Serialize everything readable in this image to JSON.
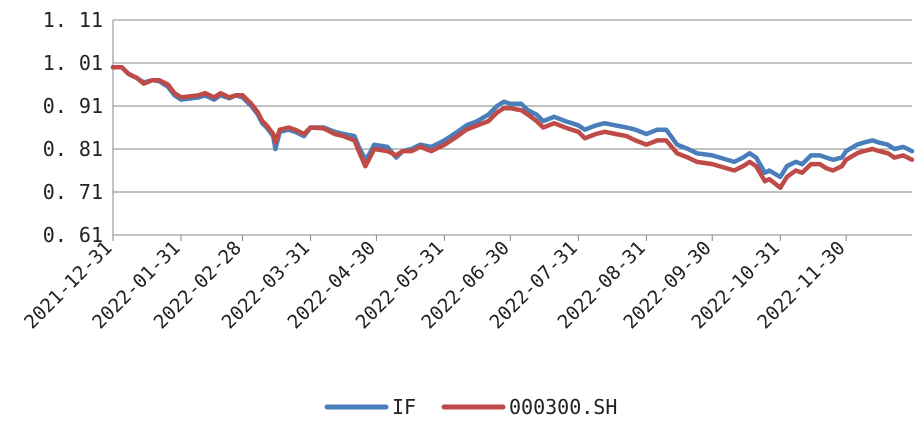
{
  "chart_data": {
    "type": "line",
    "title": "",
    "xlabel": "",
    "ylabel": "",
    "ylim": [
      0.61,
      1.11
    ],
    "yticks": [
      "0. 61",
      "0. 71",
      "0. 81",
      "0. 91",
      "1. 01",
      "1. 11"
    ],
    "yticks_values": [
      0.61,
      0.71,
      0.81,
      0.91,
      1.01,
      1.11
    ],
    "x_start": "2021-12-31",
    "x_end": "2022-12-30",
    "xticks": [
      "2021-12-31",
      "2022-01-31",
      "2022-02-28",
      "2022-03-31",
      "2022-04-30",
      "2022-05-31",
      "2022-06-30",
      "2022-07-31",
      "2022-08-31",
      "2022-09-30",
      "2022-10-31",
      "2022-11-30"
    ],
    "grid": "horizontal",
    "legend": "bottom",
    "series": [
      {
        "name": "IF",
        "color": "#4a7ebb",
        "points": [
          [
            "2021-12-31",
            1.0
          ],
          [
            "2022-01-04",
            1.0
          ],
          [
            "2022-01-07",
            0.985
          ],
          [
            "2022-01-11",
            0.975
          ],
          [
            "2022-01-14",
            0.965
          ],
          [
            "2022-01-18",
            0.97
          ],
          [
            "2022-01-21",
            0.968
          ],
          [
            "2022-01-25",
            0.955
          ],
          [
            "2022-01-28",
            0.935
          ],
          [
            "2022-01-31",
            0.925
          ],
          [
            "2022-02-08",
            0.93
          ],
          [
            "2022-02-11",
            0.935
          ],
          [
            "2022-02-15",
            0.925
          ],
          [
            "2022-02-18",
            0.935
          ],
          [
            "2022-02-22",
            0.928
          ],
          [
            "2022-02-25",
            0.935
          ],
          [
            "2022-02-28",
            0.93
          ],
          [
            "2022-03-04",
            0.91
          ],
          [
            "2022-03-07",
            0.89
          ],
          [
            "2022-03-09",
            0.87
          ],
          [
            "2022-03-11",
            0.86
          ],
          [
            "2022-03-14",
            0.84
          ],
          [
            "2022-03-15",
            0.81
          ],
          [
            "2022-03-17",
            0.85
          ],
          [
            "2022-03-21",
            0.855
          ],
          [
            "2022-03-24",
            0.85
          ],
          [
            "2022-03-28",
            0.84
          ],
          [
            "2022-03-31",
            0.86
          ],
          [
            "2022-04-06",
            0.86
          ],
          [
            "2022-04-11",
            0.85
          ],
          [
            "2022-04-15",
            0.845
          ],
          [
            "2022-04-20",
            0.84
          ],
          [
            "2022-04-22",
            0.815
          ],
          [
            "2022-04-25",
            0.785
          ],
          [
            "2022-04-27",
            0.8
          ],
          [
            "2022-04-29",
            0.82
          ],
          [
            "2022-05-05",
            0.815
          ],
          [
            "2022-05-09",
            0.79
          ],
          [
            "2022-05-12",
            0.805
          ],
          [
            "2022-05-16",
            0.81
          ],
          [
            "2022-05-20",
            0.82
          ],
          [
            "2022-05-25",
            0.815
          ],
          [
            "2022-05-31",
            0.83
          ],
          [
            "2022-06-06",
            0.85
          ],
          [
            "2022-06-10",
            0.865
          ],
          [
            "2022-06-15",
            0.875
          ],
          [
            "2022-06-20",
            0.89
          ],
          [
            "2022-06-24",
            0.91
          ],
          [
            "2022-06-27",
            0.92
          ],
          [
            "2022-06-30",
            0.915
          ],
          [
            "2022-07-05",
            0.915
          ],
          [
            "2022-07-08",
            0.9
          ],
          [
            "2022-07-12",
            0.89
          ],
          [
            "2022-07-15",
            0.875
          ],
          [
            "2022-07-20",
            0.885
          ],
          [
            "2022-07-25",
            0.875
          ],
          [
            "2022-07-28",
            0.87
          ],
          [
            "2022-07-31",
            0.865
          ],
          [
            "2022-08-03",
            0.855
          ],
          [
            "2022-08-08",
            0.865
          ],
          [
            "2022-08-12",
            0.87
          ],
          [
            "2022-08-17",
            0.865
          ],
          [
            "2022-08-22",
            0.86
          ],
          [
            "2022-08-26",
            0.855
          ],
          [
            "2022-08-31",
            0.845
          ],
          [
            "2022-09-05",
            0.855
          ],
          [
            "2022-09-09",
            0.855
          ],
          [
            "2022-09-14",
            0.82
          ],
          [
            "2022-09-19",
            0.81
          ],
          [
            "2022-09-23",
            0.8
          ],
          [
            "2022-09-30",
            0.795
          ],
          [
            "2022-10-10",
            0.78
          ],
          [
            "2022-10-14",
            0.79
          ],
          [
            "2022-10-17",
            0.8
          ],
          [
            "2022-10-20",
            0.79
          ],
          [
            "2022-10-24",
            0.755
          ],
          [
            "2022-10-26",
            0.76
          ],
          [
            "2022-10-31",
            0.745
          ],
          [
            "2022-11-03",
            0.77
          ],
          [
            "2022-11-07",
            0.78
          ],
          [
            "2022-11-10",
            0.775
          ],
          [
            "2022-11-14",
            0.795
          ],
          [
            "2022-11-18",
            0.795
          ],
          [
            "2022-11-21",
            0.79
          ],
          [
            "2022-11-24",
            0.785
          ],
          [
            "2022-11-28",
            0.79
          ],
          [
            "2022-11-30",
            0.805
          ],
          [
            "2022-12-05",
            0.82
          ],
          [
            "2022-12-08",
            0.825
          ],
          [
            "2022-12-12",
            0.83
          ],
          [
            "2022-12-15",
            0.825
          ],
          [
            "2022-12-19",
            0.82
          ],
          [
            "2022-12-22",
            0.81
          ],
          [
            "2022-12-26",
            0.815
          ],
          [
            "2022-12-30",
            0.805
          ]
        ]
      },
      {
        "name": "000300.SH",
        "color": "#be4b48",
        "points": [
          [
            "2021-12-31",
            1.0
          ],
          [
            "2022-01-04",
            1.0
          ],
          [
            "2022-01-07",
            0.985
          ],
          [
            "2022-01-11",
            0.975
          ],
          [
            "2022-01-14",
            0.962
          ],
          [
            "2022-01-18",
            0.97
          ],
          [
            "2022-01-21",
            0.97
          ],
          [
            "2022-01-25",
            0.96
          ],
          [
            "2022-01-28",
            0.94
          ],
          [
            "2022-01-31",
            0.93
          ],
          [
            "2022-02-08",
            0.935
          ],
          [
            "2022-02-11",
            0.94
          ],
          [
            "2022-02-15",
            0.93
          ],
          [
            "2022-02-18",
            0.94
          ],
          [
            "2022-02-22",
            0.93
          ],
          [
            "2022-02-25",
            0.935
          ],
          [
            "2022-02-28",
            0.935
          ],
          [
            "2022-03-04",
            0.915
          ],
          [
            "2022-03-07",
            0.895
          ],
          [
            "2022-03-09",
            0.875
          ],
          [
            "2022-03-11",
            0.865
          ],
          [
            "2022-03-14",
            0.845
          ],
          [
            "2022-03-15",
            0.825
          ],
          [
            "2022-03-17",
            0.855
          ],
          [
            "2022-03-21",
            0.86
          ],
          [
            "2022-03-24",
            0.855
          ],
          [
            "2022-03-28",
            0.845
          ],
          [
            "2022-03-31",
            0.86
          ],
          [
            "2022-04-06",
            0.858
          ],
          [
            "2022-04-11",
            0.845
          ],
          [
            "2022-04-15",
            0.84
          ],
          [
            "2022-04-20",
            0.83
          ],
          [
            "2022-04-22",
            0.805
          ],
          [
            "2022-04-25",
            0.77
          ],
          [
            "2022-04-27",
            0.79
          ],
          [
            "2022-04-29",
            0.81
          ],
          [
            "2022-05-05",
            0.805
          ],
          [
            "2022-05-09",
            0.795
          ],
          [
            "2022-05-12",
            0.805
          ],
          [
            "2022-05-16",
            0.805
          ],
          [
            "2022-05-20",
            0.815
          ],
          [
            "2022-05-25",
            0.805
          ],
          [
            "2022-05-31",
            0.82
          ],
          [
            "2022-06-06",
            0.84
          ],
          [
            "2022-06-10",
            0.855
          ],
          [
            "2022-06-15",
            0.865
          ],
          [
            "2022-06-20",
            0.875
          ],
          [
            "2022-06-24",
            0.895
          ],
          [
            "2022-06-27",
            0.905
          ],
          [
            "2022-06-30",
            0.905
          ],
          [
            "2022-07-05",
            0.9
          ],
          [
            "2022-07-08",
            0.89
          ],
          [
            "2022-07-12",
            0.875
          ],
          [
            "2022-07-15",
            0.86
          ],
          [
            "2022-07-20",
            0.87
          ],
          [
            "2022-07-25",
            0.86
          ],
          [
            "2022-07-28",
            0.855
          ],
          [
            "2022-07-31",
            0.85
          ],
          [
            "2022-08-03",
            0.835
          ],
          [
            "2022-08-08",
            0.845
          ],
          [
            "2022-08-12",
            0.85
          ],
          [
            "2022-08-17",
            0.845
          ],
          [
            "2022-08-22",
            0.84
          ],
          [
            "2022-08-26",
            0.83
          ],
          [
            "2022-08-31",
            0.82
          ],
          [
            "2022-09-05",
            0.83
          ],
          [
            "2022-09-09",
            0.83
          ],
          [
            "2022-09-14",
            0.8
          ],
          [
            "2022-09-19",
            0.79
          ],
          [
            "2022-09-23",
            0.78
          ],
          [
            "2022-09-30",
            0.775
          ],
          [
            "2022-10-10",
            0.76
          ],
          [
            "2022-10-14",
            0.77
          ],
          [
            "2022-10-17",
            0.78
          ],
          [
            "2022-10-20",
            0.77
          ],
          [
            "2022-10-24",
            0.735
          ],
          [
            "2022-10-26",
            0.74
          ],
          [
            "2022-10-31",
            0.72
          ],
          [
            "2022-11-03",
            0.745
          ],
          [
            "2022-11-07",
            0.76
          ],
          [
            "2022-11-10",
            0.755
          ],
          [
            "2022-11-14",
            0.775
          ],
          [
            "2022-11-18",
            0.775
          ],
          [
            "2022-11-21",
            0.765
          ],
          [
            "2022-11-24",
            0.76
          ],
          [
            "2022-11-28",
            0.77
          ],
          [
            "2022-11-30",
            0.785
          ],
          [
            "2022-12-05",
            0.8
          ],
          [
            "2022-12-08",
            0.805
          ],
          [
            "2022-12-12",
            0.81
          ],
          [
            "2022-12-15",
            0.805
          ],
          [
            "2022-12-19",
            0.8
          ],
          [
            "2022-12-22",
            0.79
          ],
          [
            "2022-12-26",
            0.795
          ],
          [
            "2022-12-30",
            0.785
          ]
        ]
      }
    ]
  }
}
